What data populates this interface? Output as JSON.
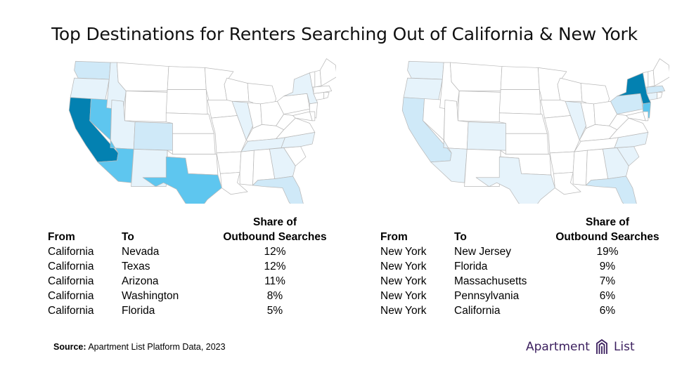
{
  "title": "Top Destinations for Renters Searching Out of California & New York",
  "colors": {
    "none": "#ffffff",
    "lightest": "#e6f3fb",
    "light": "#cfe9f8",
    "medium": "#5ec6ef",
    "dark": "#0381b1",
    "border": "#b9b9b9"
  },
  "maps": {
    "california": {
      "origin": "California",
      "highlight": {
        "CA": "dark",
        "NV": "medium",
        "TX": "medium",
        "AZ": "medium",
        "WA": "light",
        "OR": "lightest",
        "ID": "lightest",
        "UT": "lightest",
        "CO": "light",
        "FL": "light",
        "IL": "lightest",
        "NY": "lightest",
        "NC": "lightest",
        "GA": "lightest",
        "TN": "lightest",
        "NM": "lightest"
      }
    },
    "new_york": {
      "origin": "New York",
      "highlight": {
        "NY": "dark",
        "NJ": "medium",
        "FL": "light",
        "MA": "light",
        "PA": "light",
        "CA": "light",
        "TX": "lightest",
        "CO": "lightest",
        "NC": "lightest",
        "GA": "lightest",
        "WA": "lightest",
        "CT": "lightest",
        "IL": "lightest",
        "AZ": "lightest",
        "OR": "lightest",
        "SC": "lightest"
      }
    }
  },
  "tables": {
    "headers": {
      "from": "From",
      "to": "To",
      "share_line1": "Share of",
      "share_line2": "Outbound Searches"
    },
    "california": [
      {
        "from": "California",
        "to": "Nevada",
        "share": "12%"
      },
      {
        "from": "California",
        "to": "Texas",
        "share": "12%"
      },
      {
        "from": "California",
        "to": "Arizona",
        "share": "11%"
      },
      {
        "from": "California",
        "to": "Washington",
        "share": "8%"
      },
      {
        "from": "California",
        "to": "Florida",
        "share": "5%"
      }
    ],
    "new_york": [
      {
        "from": "New York",
        "to": "New Jersey",
        "share": "19%"
      },
      {
        "from": "New York",
        "to": "Florida",
        "share": "9%"
      },
      {
        "from": "New York",
        "to": "Massachusetts",
        "share": "7%"
      },
      {
        "from": "New York",
        "to": "Pennsylvania",
        "share": "6%"
      },
      {
        "from": "New York",
        "to": "California",
        "share": "6%"
      }
    ]
  },
  "source": {
    "label": "Source:",
    "text": "Apartment List Platform Data, 2023"
  },
  "logo": {
    "word1": "Apartment",
    "word2": "List",
    "icon": "apartment-list-logo-icon"
  }
}
